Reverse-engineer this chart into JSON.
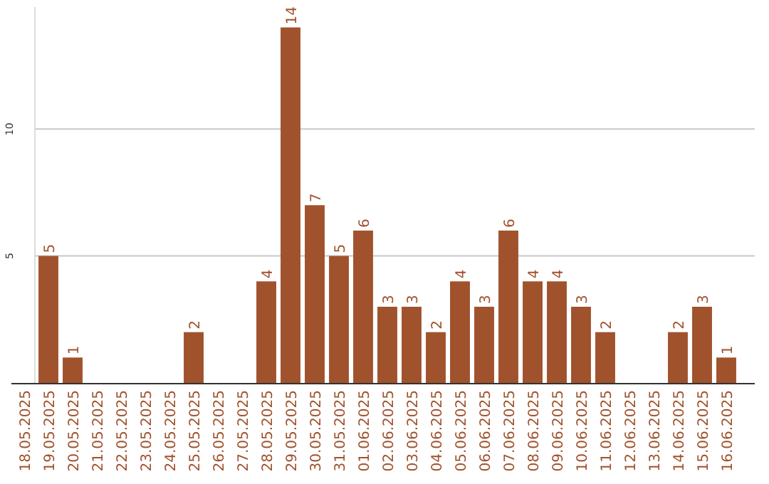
{
  "chart_data": {
    "type": "bar",
    "categories": [
      "18.05.2025",
      "19.05.2025",
      "20.05.2025",
      "21.05.2025",
      "22.05.2025",
      "23.05.2025",
      "24.05.2025",
      "25.05.2025",
      "26.05.2025",
      "27.05.2025",
      "28.05.2025",
      "29.05.2025",
      "30.05.2025",
      "31.05.2025",
      "01.06.2025",
      "02.06.2025",
      "03.06.2025",
      "04.06.2025",
      "05.06.2025",
      "06.06.2025",
      "07.06.2025",
      "08.06.2025",
      "09.06.2025",
      "10.06.2025",
      "11.06.2025",
      "12.06.2025",
      "13.06.2025",
      "14.06.2025",
      "15.06.2025",
      "16.06.2025"
    ],
    "values": [
      0,
      5,
      1,
      0,
      0,
      0,
      0,
      2,
      0,
      0,
      4,
      14,
      7,
      5,
      6,
      3,
      3,
      2,
      4,
      3,
      6,
      4,
      4,
      3,
      2,
      0,
      0,
      2,
      3,
      1
    ],
    "value_labels": [
      null,
      "5",
      "1",
      null,
      null,
      null,
      null,
      "2",
      null,
      null,
      "4",
      "14",
      "7",
      "5",
      "6",
      "3",
      "3",
      "2",
      "4",
      "3",
      "6",
      "4",
      "4",
      "3",
      "2",
      null,
      null,
      "2",
      "3",
      "1"
    ],
    "color": "#a0522d",
    "ylim": [
      0,
      14.8
    ],
    "yticks": [
      5,
      10
    ],
    "grid": "y"
  }
}
